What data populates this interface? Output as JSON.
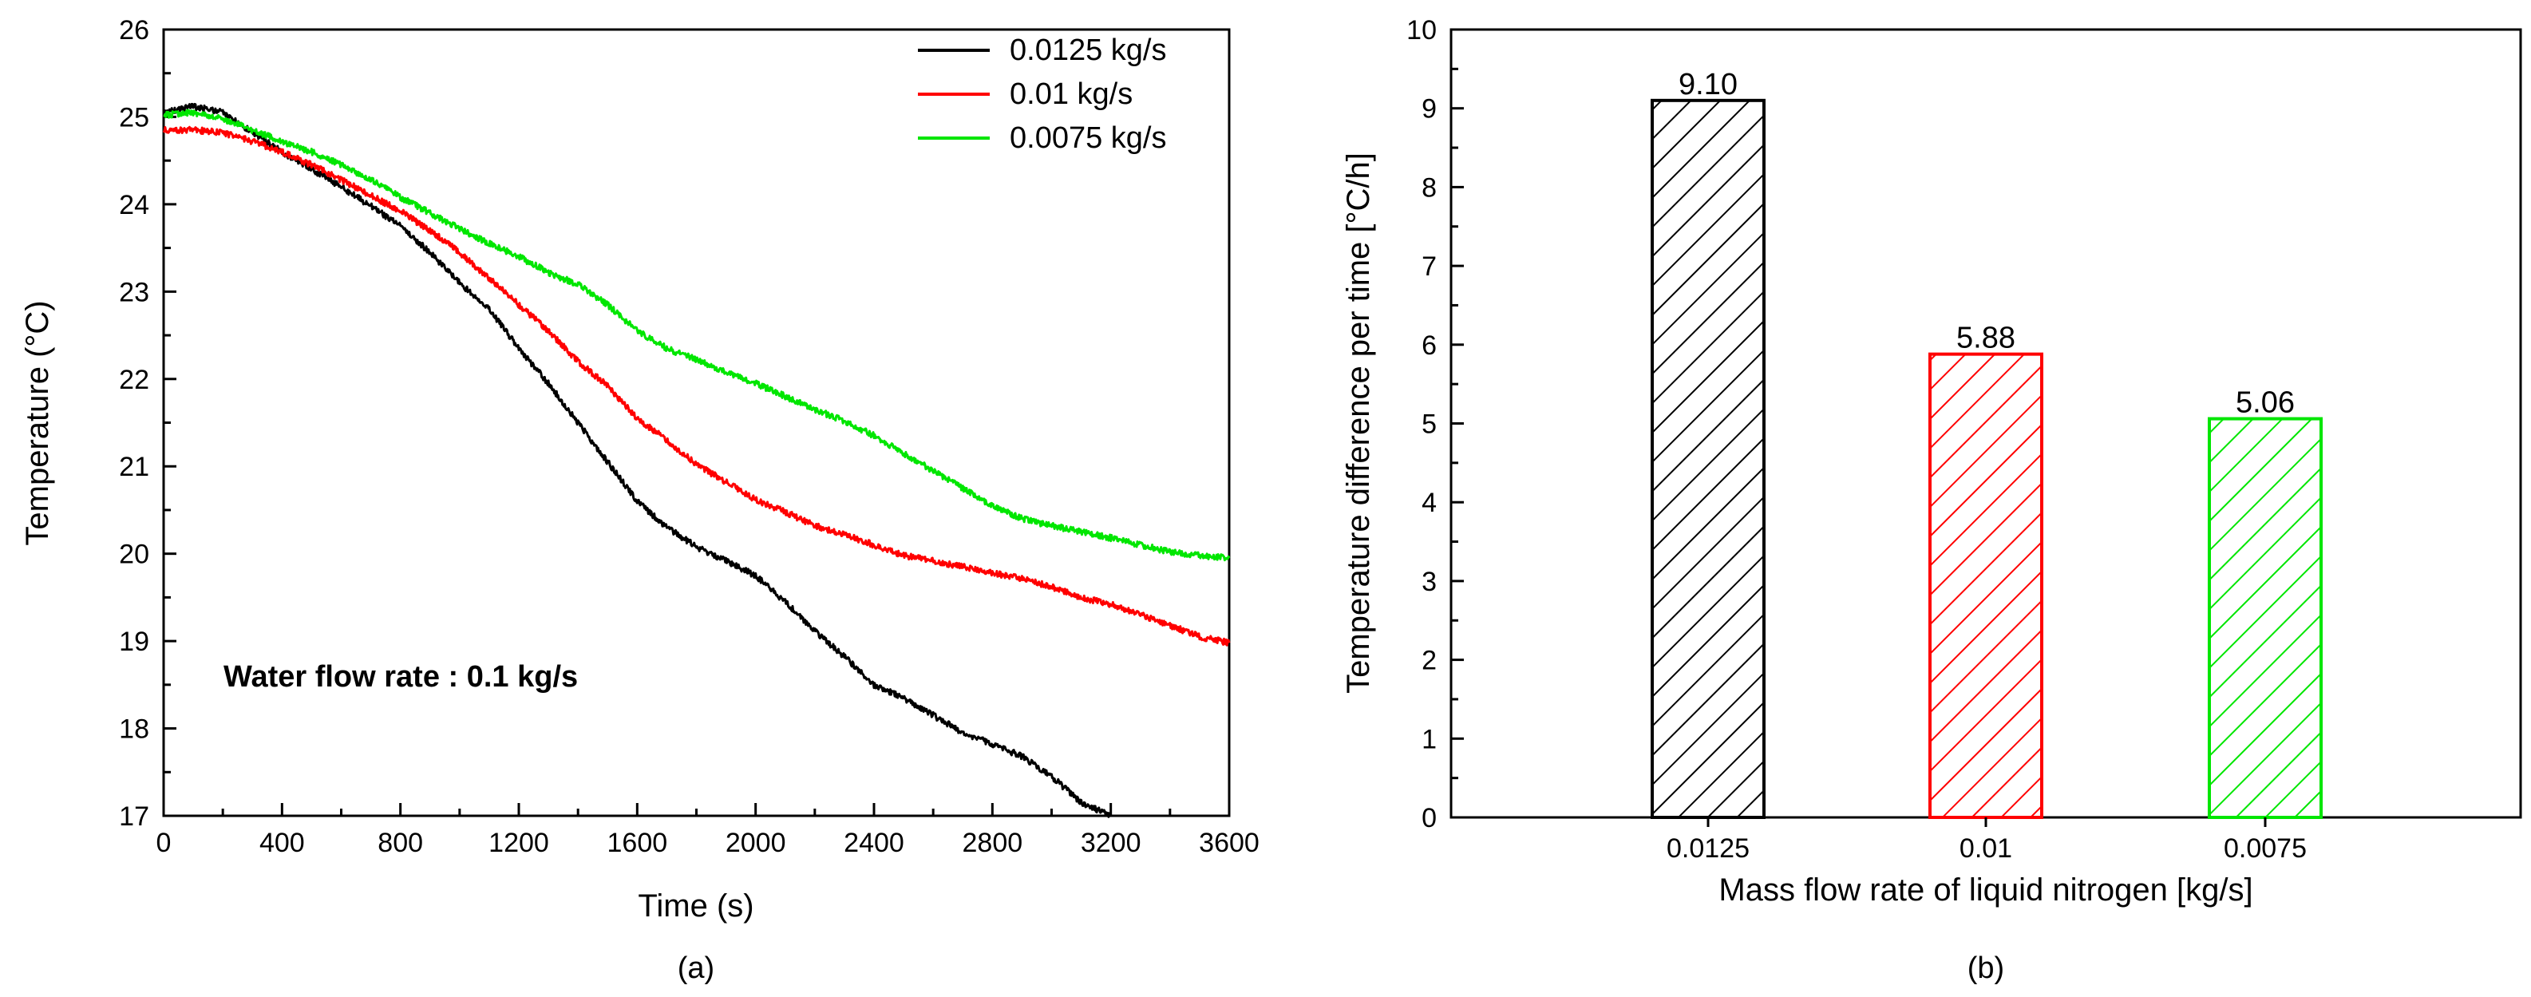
{
  "chart_data": [
    {
      "type": "line",
      "panel_label": "(a)",
      "xlabel": "Time (s)",
      "ylabel": "Temperature (°C)",
      "xlim": [
        0,
        3600
      ],
      "ylim": [
        17,
        26
      ],
      "xticks": [
        0,
        400,
        800,
        1200,
        1600,
        2000,
        2400,
        2800,
        3200,
        3600
      ],
      "yticks": [
        17,
        18,
        19,
        20,
        21,
        22,
        23,
        24,
        25,
        26
      ],
      "annotation": "Water flow rate : 0.1 kg/s",
      "legend_position": "top-right",
      "series": [
        {
          "name": "0.0125 kg/s",
          "color": "#000000",
          "x": [
            0,
            100,
            200,
            300,
            400,
            500,
            600,
            700,
            800,
            900,
            1000,
            1100,
            1200,
            1300,
            1400,
            1500,
            1600,
            1700,
            1800,
            1900,
            2000,
            2100,
            2200,
            2300,
            2400,
            2500,
            2600,
            2700,
            2800,
            2900,
            3000,
            3100,
            3200
          ],
          "y": [
            25.05,
            25.12,
            25.05,
            24.82,
            24.6,
            24.4,
            24.2,
            23.98,
            23.75,
            23.45,
            23.1,
            22.8,
            22.35,
            21.95,
            21.5,
            21.05,
            20.6,
            20.3,
            20.08,
            19.92,
            19.75,
            19.45,
            19.12,
            18.82,
            18.5,
            18.35,
            18.15,
            17.95,
            17.82,
            17.68,
            17.45,
            17.15,
            17.0
          ]
        },
        {
          "name": "0.01 kg/s",
          "color": "#ff0000",
          "x": [
            0,
            100,
            200,
            300,
            400,
            500,
            600,
            700,
            800,
            900,
            1000,
            1100,
            1200,
            1300,
            1400,
            1500,
            1600,
            1700,
            1800,
            1900,
            2000,
            2100,
            2200,
            2300,
            2400,
            2500,
            2600,
            2700,
            2800,
            2900,
            3000,
            3100,
            3200,
            3300,
            3400,
            3500,
            3600
          ],
          "y": [
            24.85,
            24.85,
            24.82,
            24.72,
            24.6,
            24.45,
            24.28,
            24.1,
            23.92,
            23.7,
            23.45,
            23.15,
            22.85,
            22.55,
            22.2,
            21.92,
            21.55,
            21.3,
            21.02,
            20.82,
            20.62,
            20.48,
            20.32,
            20.22,
            20.1,
            19.98,
            19.92,
            19.85,
            19.78,
            19.72,
            19.62,
            19.5,
            19.42,
            19.3,
            19.18,
            19.05,
            18.98
          ]
        },
        {
          "name": "0.0075 kg/s",
          "color": "#00e600",
          "x": [
            0,
            100,
            200,
            300,
            400,
            500,
            600,
            700,
            800,
            900,
            1000,
            1100,
            1200,
            1300,
            1400,
            1500,
            1600,
            1700,
            1800,
            1900,
            2000,
            2100,
            2200,
            2300,
            2400,
            2500,
            2600,
            2700,
            2800,
            2900,
            3000,
            3100,
            3200,
            3300,
            3400,
            3500,
            3600
          ],
          "y": [
            25.02,
            25.05,
            24.98,
            24.85,
            24.72,
            24.6,
            24.45,
            24.28,
            24.08,
            23.9,
            23.72,
            23.55,
            23.4,
            23.22,
            23.08,
            22.85,
            22.55,
            22.35,
            22.22,
            22.08,
            21.95,
            21.8,
            21.65,
            21.52,
            21.35,
            21.15,
            20.95,
            20.75,
            20.55,
            20.4,
            20.32,
            20.25,
            20.18,
            20.1,
            20.02,
            19.98,
            19.95
          ]
        }
      ]
    },
    {
      "type": "bar",
      "panel_label": "(b)",
      "xlabel": "Mass flow rate of liquid nitrogen [kg/s]",
      "ylabel": "Temperature difference per time [°C/h]",
      "ylim": [
        0,
        10
      ],
      "yticks": [
        0,
        1,
        2,
        3,
        4,
        5,
        6,
        7,
        8,
        9,
        10
      ],
      "categories": [
        "0.0125",
        "0.01",
        "0.0075"
      ],
      "values": [
        9.1,
        5.88,
        5.06
      ],
      "value_labels": [
        "9.10",
        "5.88",
        "5.06"
      ],
      "colors": [
        "#000000",
        "#ff0000",
        "#00e600"
      ],
      "hatch": "diagonal"
    }
  ]
}
